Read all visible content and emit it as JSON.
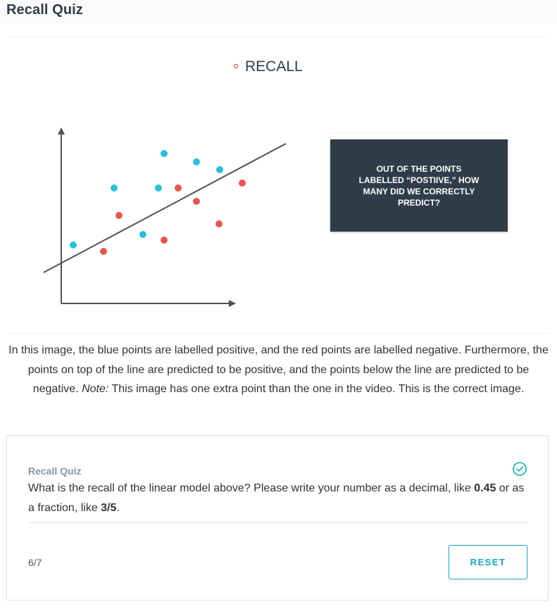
{
  "page": {
    "title": "Recall Quiz"
  },
  "figure": {
    "heading": "RECALL",
    "heading_bullet": "◦",
    "question_box": "OUT OF THE POINTS LABELLED “POSTIIVE,” HOW MANY DID WE CORRECTLY PREDICT?",
    "colors": {
      "positive": "#27c0df",
      "negative": "#e8574c",
      "axis": "#4a5359",
      "box": "#2e3d49"
    },
    "icons": [
      "bullet-icon",
      "arrow-up-icon",
      "arrow-right-icon"
    ]
  },
  "description": {
    "part1": "In this image, the blue points are labelled positive, and the red points are labelled negative. Furthermore, the points on top of the line are predicted to be positive, and the points below the line are predicted to be negative. ",
    "note_label": "Note:",
    "part2": " This image has one extra point than the one in the video. This is the correct image."
  },
  "quiz": {
    "label": "Recall Quiz",
    "status_icon": "check-circle-icon",
    "status_color": "#02b3a4",
    "question_part1": "What is the recall of the linear model above? Please write your number as a decimal, like ",
    "example_decimal": "0.45",
    "question_part2": " or as a fraction, like ",
    "example_fraction": "3/5",
    "question_part3": ".",
    "progress": "6/7",
    "reset_label": "RESET"
  }
}
